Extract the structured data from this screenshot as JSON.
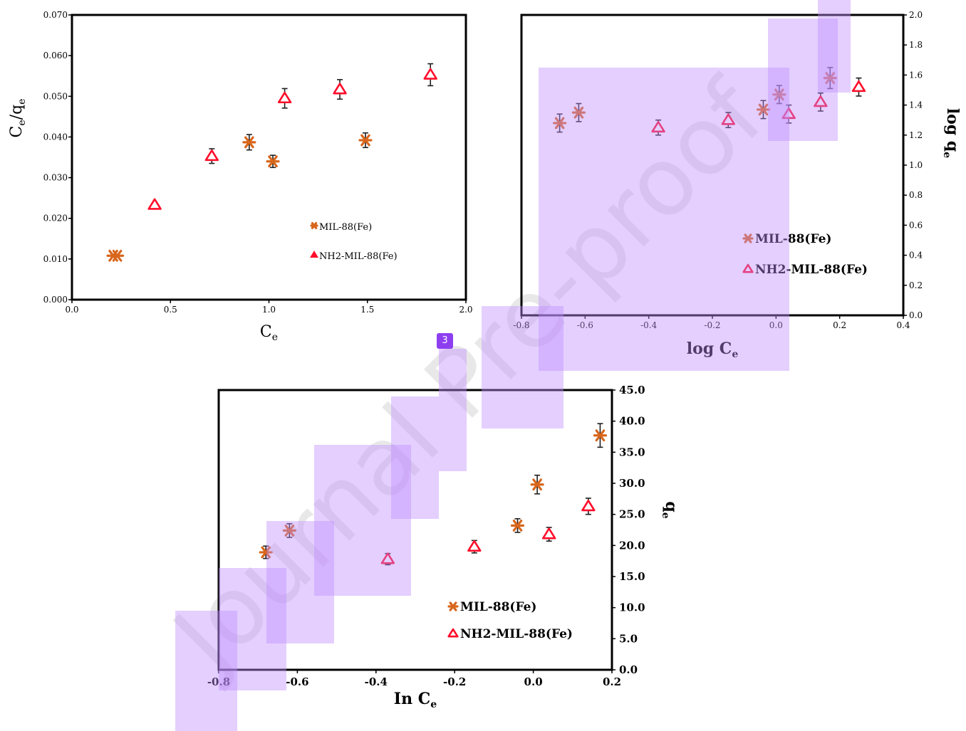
{
  "watermark": "Journal Pre-proof",
  "page_marker": "3",
  "colors": {
    "mil_marker": "#d8661b",
    "mil_error": "#1f1f1f",
    "nh2_marker": "#ff0d2a",
    "frame": "#000000",
    "highlight": "#b98cff",
    "badge": "#8d3ff0",
    "watermark": "#e8e8e8"
  },
  "chart_data": [
    {
      "type": "scatter",
      "title": "",
      "xlabel": "C",
      "xlabel_subscript": "e",
      "ylabel": "C",
      "ylabel_subscript": "e",
      "ylabel_suffix": "/q",
      "ylabel_suffix_subscript": "e",
      "xlim": [
        0.0,
        2.0
      ],
      "ylim": [
        0.0,
        0.07
      ],
      "xticks": [
        "0.0",
        "0.5",
        "1.0",
        "1.5",
        "2.0"
      ],
      "yticks": [
        "0.000",
        "0.010",
        "0.020",
        "0.030",
        "0.040",
        "0.050",
        "0.060",
        "0.070"
      ],
      "y_axis_side": "left",
      "legend_position": "bottom-right",
      "series": [
        {
          "name": "MIL-88(Fe)",
          "marker": "asterisk",
          "x": [
            0.21,
            0.23,
            0.9,
            1.02,
            1.49
          ],
          "y": [
            0.0108,
            0.0108,
            0.0387,
            0.034,
            0.0392
          ],
          "err": [
            0.0,
            0.0,
            0.0019,
            0.0015,
            0.0018
          ]
        },
        {
          "name": "NH2-MIL-88(Fe)",
          "marker": "triangle",
          "x": [
            0.42,
            0.71,
            1.08,
            1.36,
            1.82
          ],
          "y": [
            0.0233,
            0.0353,
            0.0495,
            0.0517,
            0.0553
          ],
          "err": [
            0.0,
            0.0018,
            0.0024,
            0.0024,
            0.0027
          ]
        }
      ]
    },
    {
      "type": "scatter",
      "title": "",
      "xlabel": "log C",
      "xlabel_subscript": "e",
      "ylabel": "log q",
      "ylabel_subscript": "e",
      "xlim": [
        -0.8,
        0.4
      ],
      "ylim": [
        0.0,
        2.0
      ],
      "xticks": [
        "-0.8",
        "-0.6",
        "-0.4",
        "-0.2",
        "0.0",
        "0.2",
        "0.4"
      ],
      "yticks": [
        "0.0",
        "0.2",
        "0.4",
        "0.6",
        "0.8",
        "1.0",
        "1.2",
        "1.4",
        "1.6",
        "1.8",
        "2.0"
      ],
      "y_axis_side": "right",
      "legend_position": "bottom-right",
      "series": [
        {
          "name": "MIL-88(Fe)",
          "marker": "asterisk",
          "x": [
            -0.68,
            -0.62,
            -0.04,
            0.01,
            0.17
          ],
          "y": [
            1.28,
            1.35,
            1.37,
            1.47,
            1.58
          ],
          "err": [
            0.06,
            0.06,
            0.06,
            0.06,
            0.07
          ]
        },
        {
          "name": "NH2-MIL-88(Fe)",
          "marker": "triangle",
          "x": [
            -0.37,
            -0.15,
            0.04,
            0.14,
            0.26
          ],
          "y": [
            1.25,
            1.3,
            1.34,
            1.42,
            1.52
          ],
          "err": [
            0.05,
            0.05,
            0.06,
            0.06,
            0.06
          ]
        }
      ]
    },
    {
      "type": "scatter",
      "title": "",
      "xlabel": "In C",
      "xlabel_subscript": "e",
      "ylabel": "q",
      "ylabel_subscript": "e",
      "xlim": [
        -0.8,
        0.2
      ],
      "ylim": [
        0.0,
        45.0
      ],
      "xticks": [
        "-0.8",
        "-0.6",
        "-0.4",
        "-0.2",
        "0.0",
        "0.2"
      ],
      "yticks": [
        "0.0",
        "5.0",
        "10.0",
        "15.0",
        "20.0",
        "25.0",
        "30.0",
        "35.0",
        "40.0",
        "45.0"
      ],
      "y_axis_side": "right",
      "legend_position": "bottom-right",
      "series": [
        {
          "name": "MIL-88(Fe)",
          "marker": "asterisk",
          "x": [
            -0.68,
            -0.62,
            -0.04,
            0.01,
            0.17
          ],
          "y": [
            18.9,
            22.4,
            23.2,
            29.8,
            37.7
          ],
          "err": [
            1.0,
            1.1,
            1.1,
            1.5,
            1.9
          ]
        },
        {
          "name": "NH2-MIL-88(Fe)",
          "marker": "triangle",
          "x": [
            -0.37,
            -0.15,
            0.04,
            0.14
          ],
          "y": [
            17.8,
            19.8,
            21.8,
            26.3
          ],
          "err": [
            0.9,
            1.0,
            1.1,
            1.3
          ]
        }
      ]
    }
  ]
}
